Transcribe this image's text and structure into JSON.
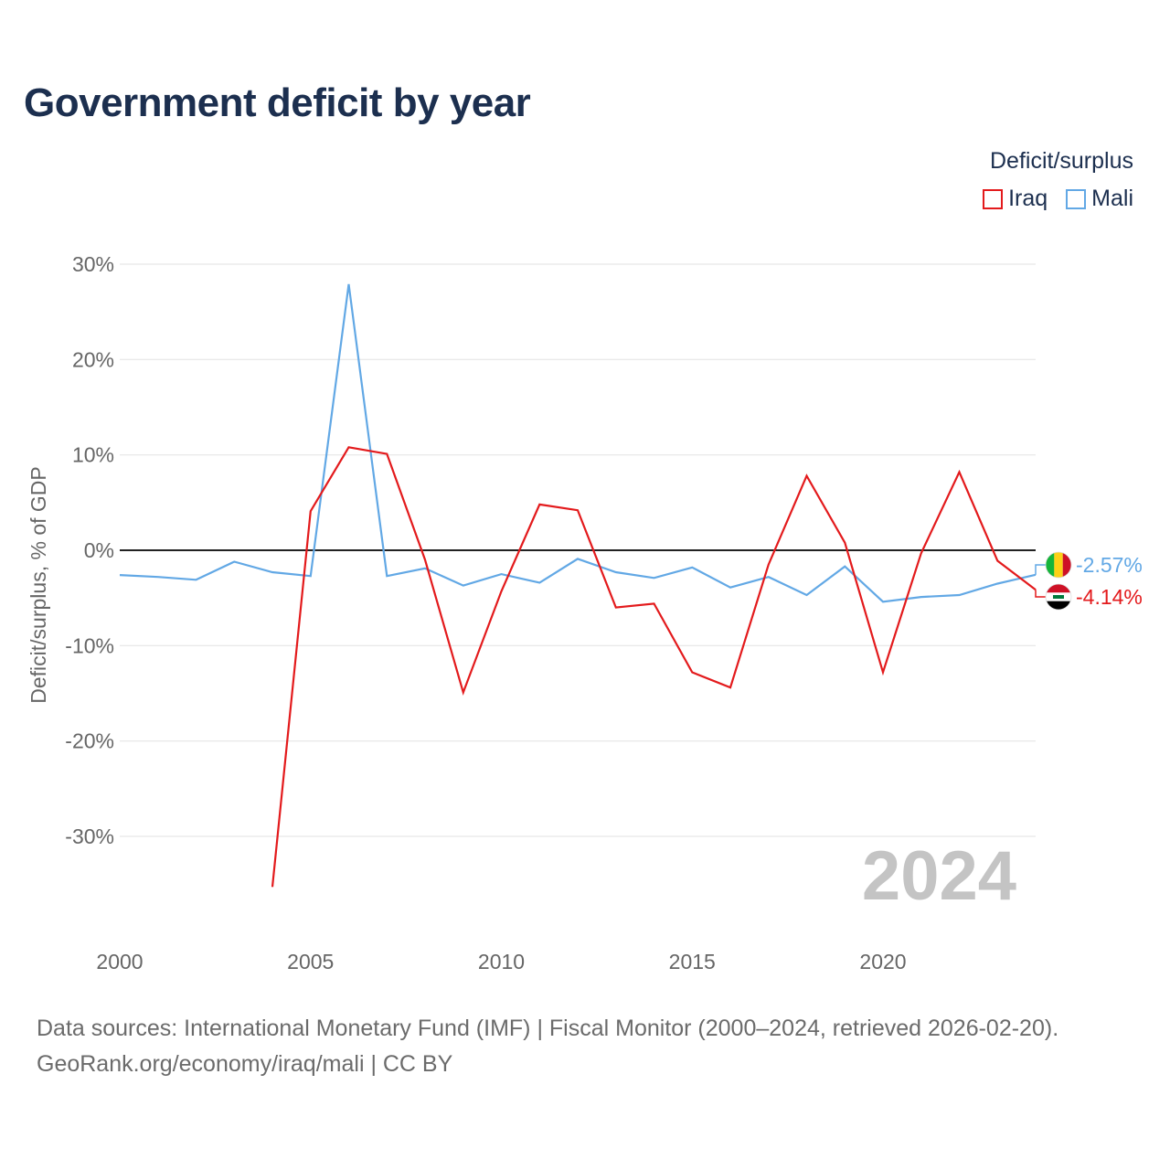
{
  "title": "Government deficit by year",
  "legend": {
    "title": "Deficit/surplus",
    "items": [
      {
        "label": "Iraq",
        "color": "#e31a1c"
      },
      {
        "label": "Mali",
        "color": "#62a8e5"
      }
    ]
  },
  "chart_data": {
    "type": "line",
    "ylabel": "Deficit/surplus, % of GDP",
    "xlabel": "",
    "ylim": [
      -40,
      30
    ],
    "xlim": [
      2000,
      2024
    ],
    "y_ticks": [
      30,
      20,
      10,
      0,
      -10,
      -20,
      -30
    ],
    "y_tick_labels": [
      "30%",
      "20%",
      "10%",
      "0%",
      "-10%",
      "-20%",
      "-30%"
    ],
    "x_ticks": [
      2000,
      2005,
      2010,
      2015,
      2020
    ],
    "x_tick_labels": [
      "2000",
      "2005",
      "2010",
      "2015",
      "2020"
    ],
    "grid": true,
    "watermark_year": "2024",
    "series": [
      {
        "name": "Iraq",
        "color": "#e31a1c",
        "x": [
          2004,
          2005,
          2006,
          2007,
          2008,
          2009,
          2010,
          2011,
          2012,
          2013,
          2014,
          2015,
          2016,
          2017,
          2018,
          2019,
          2020,
          2021,
          2022,
          2023,
          2024
        ],
        "values": [
          -35.3,
          4.1,
          10.8,
          10.1,
          -1.0,
          -14.9,
          -4.3,
          4.8,
          4.2,
          -6.0,
          -5.6,
          -12.8,
          -14.4,
          -1.5,
          7.8,
          0.8,
          -12.8,
          -0.3,
          8.2,
          -1.1,
          -4.14
        ],
        "end_label": "-4.14%"
      },
      {
        "name": "Mali",
        "color": "#62a8e5",
        "x": [
          2000,
          2001,
          2002,
          2003,
          2004,
          2005,
          2006,
          2007,
          2008,
          2009,
          2010,
          2011,
          2012,
          2013,
          2014,
          2015,
          2016,
          2017,
          2018,
          2019,
          2020,
          2021,
          2022,
          2023,
          2024
        ],
        "values": [
          -2.6,
          -2.8,
          -3.1,
          -1.2,
          -2.3,
          -2.7,
          27.9,
          -2.7,
          -1.9,
          -3.7,
          -2.5,
          -3.4,
          -0.9,
          -2.3,
          -2.9,
          -1.8,
          -3.9,
          -2.8,
          -4.7,
          -1.7,
          -5.4,
          -4.9,
          -4.7,
          -3.5,
          -2.57
        ],
        "end_label": "-2.57%"
      }
    ]
  },
  "footer": {
    "line1": "Data sources: International Monetary Fund (IMF) | Fiscal Monitor (2000–2024, retrieved 2026-02-20).",
    "line2": "GeoRank.org/economy/iraq/mali | CC BY"
  }
}
